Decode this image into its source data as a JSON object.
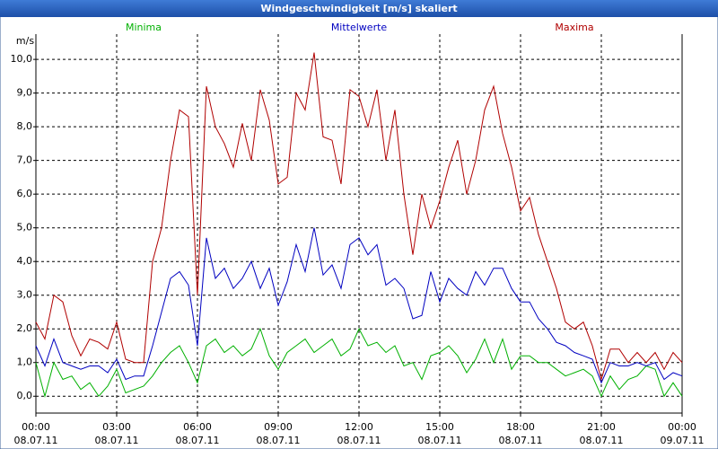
{
  "window_title": "Windgeschwindigkeit [m/s] skaliert",
  "chart_data": {
    "type": "line",
    "y_label": "m/s",
    "x": [
      0,
      20,
      40,
      60,
      80,
      100,
      120,
      140,
      160,
      180,
      200,
      220,
      240,
      260,
      280,
      300,
      320,
      340,
      360,
      380,
      400,
      420,
      440,
      460,
      480,
      500,
      520,
      540,
      560,
      580,
      600,
      620,
      640,
      660,
      680,
      700,
      720,
      740,
      760,
      780,
      800,
      820,
      840,
      860,
      880,
      900,
      920,
      940,
      960,
      980,
      1000,
      1020,
      1040,
      1060,
      1080,
      1100,
      1120,
      1140,
      1160,
      1180,
      1200,
      1220,
      1240,
      1260,
      1280,
      1300,
      1320,
      1340,
      1360,
      1380,
      1400,
      1420,
      1440
    ],
    "xlim": [
      0,
      1440
    ],
    "xticks": [
      {
        "value": 0,
        "label": "00:00"
      },
      {
        "value": 180,
        "label": "03:00"
      },
      {
        "value": 360,
        "label": "06:00"
      },
      {
        "value": 540,
        "label": "09:00"
      },
      {
        "value": 720,
        "label": "12:00"
      },
      {
        "value": 900,
        "label": "15:00"
      },
      {
        "value": 1080,
        "label": "18:00"
      },
      {
        "value": 1260,
        "label": "21:00"
      },
      {
        "value": 1440,
        "label": "00:00"
      }
    ],
    "xtick_dates": [
      "08.07.11",
      "08.07.11",
      "08.07.11",
      "08.07.11",
      "08.07.11",
      "08.07.11",
      "08.07.11",
      "08.07.11",
      "09.07.11"
    ],
    "ylim": [
      -0.5,
      10.75
    ],
    "yticks": [
      {
        "value": 0,
        "label": "0,0"
      },
      {
        "value": 1,
        "label": "1,0"
      },
      {
        "value": 2,
        "label": "2,0"
      },
      {
        "value": 3,
        "label": "3,0"
      },
      {
        "value": 4,
        "label": "4,0"
      },
      {
        "value": 5,
        "label": "5,0"
      },
      {
        "value": 6,
        "label": "6,0"
      },
      {
        "value": 7,
        "label": "7,0"
      },
      {
        "value": 8,
        "label": "8,0"
      },
      {
        "value": 9,
        "label": "9,0"
      },
      {
        "value": 10,
        "label": "10,0"
      }
    ],
    "grid": true,
    "series": [
      {
        "name": "Minima",
        "color": "#00b000",
        "values": [
          1.0,
          0.0,
          1.0,
          0.5,
          0.6,
          0.2,
          0.4,
          0.0,
          0.3,
          0.8,
          0.1,
          0.2,
          0.3,
          0.6,
          1.0,
          1.3,
          1.5,
          1.0,
          0.4,
          1.5,
          1.7,
          1.3,
          1.5,
          1.2,
          1.4,
          2.0,
          1.2,
          0.8,
          1.3,
          1.5,
          1.7,
          1.3,
          1.5,
          1.7,
          1.2,
          1.4,
          2.0,
          1.5,
          1.6,
          1.3,
          1.5,
          0.9,
          1.0,
          0.5,
          1.2,
          1.3,
          1.5,
          1.2,
          0.7,
          1.1,
          1.7,
          1.0,
          1.7,
          0.8,
          1.2,
          1.2,
          1.0,
          1.0,
          0.8,
          0.6,
          0.7,
          0.8,
          0.6,
          0.0,
          0.6,
          0.2,
          0.5,
          0.6,
          0.9,
          0.8,
          0.0,
          0.4,
          0.0
        ]
      },
      {
        "name": "Mittelwerte",
        "color": "#0000c0",
        "values": [
          1.5,
          0.9,
          1.7,
          1.0,
          0.9,
          0.8,
          0.9,
          0.9,
          0.7,
          1.1,
          0.5,
          0.6,
          0.6,
          1.5,
          2.5,
          3.5,
          3.7,
          3.3,
          1.5,
          4.7,
          3.5,
          3.8,
          3.2,
          3.5,
          4.0,
          3.2,
          3.8,
          2.7,
          3.4,
          4.5,
          3.7,
          5.0,
          3.6,
          3.9,
          3.2,
          4.5,
          4.7,
          4.2,
          4.5,
          3.3,
          3.5,
          3.2,
          2.3,
          2.4,
          3.7,
          2.8,
          3.5,
          3.2,
          3.0,
          3.7,
          3.3,
          3.8,
          3.8,
          3.2,
          2.8,
          2.8,
          2.3,
          2.0,
          1.6,
          1.5,
          1.3,
          1.2,
          1.1,
          0.4,
          1.0,
          0.9,
          0.9,
          1.0,
          0.9,
          1.0,
          0.5,
          0.7,
          0.6
        ]
      },
      {
        "name": "Maxima",
        "color": "#b00000",
        "values": [
          2.2,
          1.7,
          3.0,
          2.8,
          1.8,
          1.2,
          1.7,
          1.6,
          1.4,
          2.2,
          1.1,
          1.0,
          1.0,
          4.0,
          5.0,
          7.0,
          8.5,
          8.3,
          3.0,
          9.2,
          8.0,
          7.5,
          6.8,
          8.1,
          7.0,
          9.1,
          8.2,
          6.3,
          6.5,
          9.0,
          8.5,
          10.2,
          7.7,
          7.6,
          6.3,
          9.1,
          8.9,
          8.0,
          9.1,
          7.0,
          8.5,
          6.0,
          4.2,
          6.0,
          5.0,
          5.8,
          6.8,
          7.6,
          6.0,
          7.0,
          8.5,
          9.2,
          7.8,
          6.8,
          5.5,
          5.9,
          4.8,
          4.0,
          3.2,
          2.2,
          2.0,
          2.2,
          1.5,
          0.5,
          1.4,
          1.4,
          1.0,
          1.3,
          1.0,
          1.3,
          0.8,
          1.3,
          1.0
        ]
      }
    ]
  }
}
